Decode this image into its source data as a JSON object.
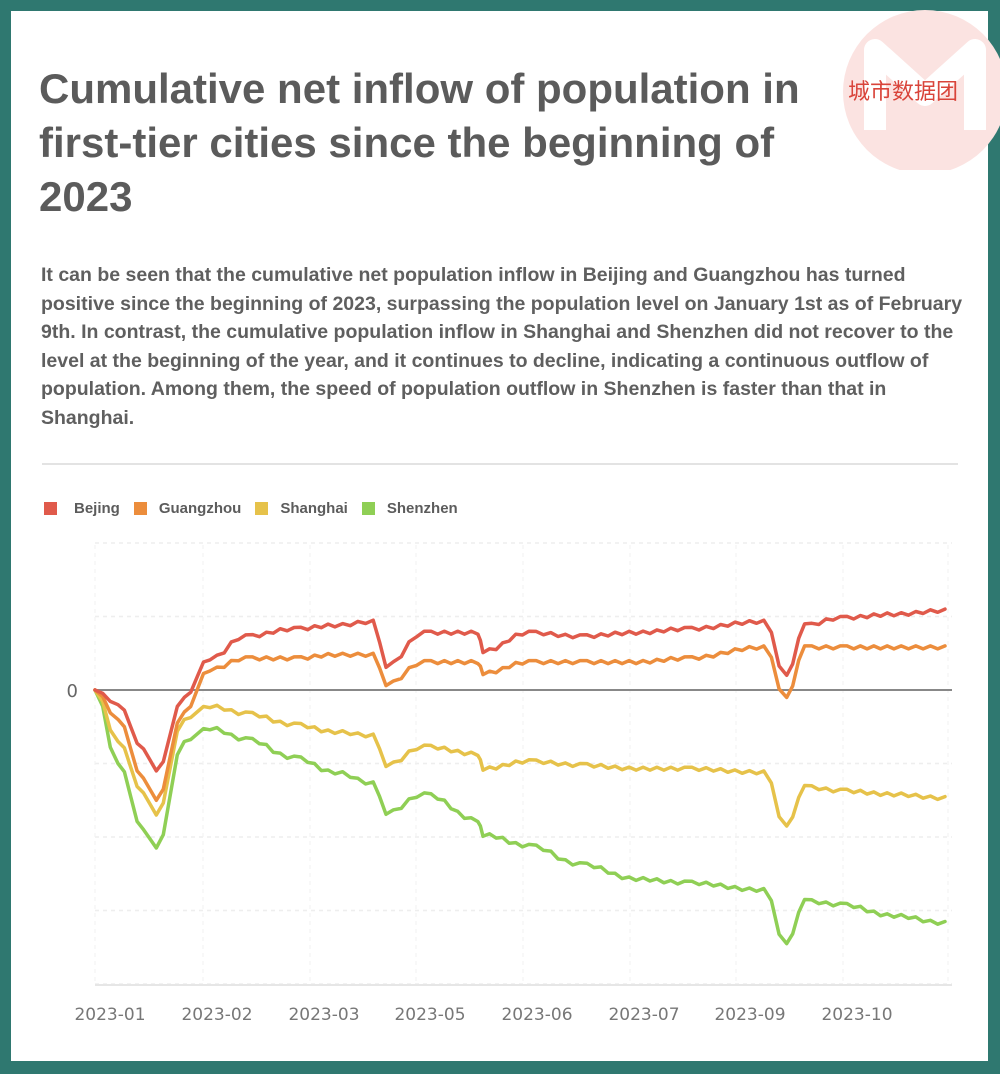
{
  "logo": {
    "text": "城市数据团"
  },
  "title": "Cumulative net inflow of population in first-tier cities since the beginning of 2023",
  "description": "It can be seen that the cumulative net population inflow in Beijing and Guangzhou has turned positive since the beginning of 2023, surpassing the population level on January 1st as of February 9th. In contrast, the cumulative population inflow in Shanghai and Shenzhen did not recover to the level at the beginning of the year, and it continues to decline, indicating a continuous outflow of population. Among them, the speed of population outflow in Shenzhen is faster than that in Shanghai.",
  "legend": [
    {
      "label": "Bejing",
      "color": "#e05a4b"
    },
    {
      "label": "Guangzhou",
      "color": "#ec8d3c"
    },
    {
      "label": "Shanghai",
      "color": "#e6c24a"
    },
    {
      "label": "Shenzhen",
      "color": "#8fcf55"
    }
  ],
  "chart_data": {
    "type": "line",
    "title": "Cumulative net inflow of population in first-tier cities since the beginning of 2023",
    "xlabel": "",
    "ylabel": "",
    "y_tick_labels": [
      "0"
    ],
    "x_tick_labels": [
      "2023-01",
      "2023-02",
      "2023-03",
      "2023-05",
      "2023-06",
      "2023-07",
      "2023-09",
      "2023-10"
    ],
    "grid": true,
    "legend_position": "top-left",
    "units_note": "Values in gridline units relative to 0 (no numeric scale shown besides 0)",
    "x": [
      "2023-01-01",
      "2023-01-10",
      "2023-01-20",
      "2023-01-25",
      "2023-02-05",
      "2023-02-15",
      "2023-03-01",
      "2023-03-20",
      "2023-04-05",
      "2023-04-20",
      "2023-04-25",
      "2023-05-10",
      "2023-05-31",
      "2023-06-02",
      "2023-06-20",
      "2023-07-10",
      "2023-08-01",
      "2023-08-20",
      "2023-09-20",
      "2023-09-29",
      "2023-10-06",
      "2023-10-20",
      "2023-11-10",
      "2023-11-30"
    ],
    "series": [
      {
        "name": "Bejing",
        "color": "#e05a4b",
        "values": [
          0,
          -0.2,
          -0.8,
          -1.1,
          -0.1,
          0.45,
          0.75,
          0.85,
          0.9,
          0.95,
          0.35,
          0.8,
          0.8,
          0.55,
          0.8,
          0.75,
          0.8,
          0.85,
          0.95,
          0.2,
          0.9,
          1.0,
          1.05,
          1.1
        ]
      },
      {
        "name": "Guangzhou",
        "color": "#ec8d3c",
        "values": [
          0,
          -0.4,
          -1.2,
          -1.5,
          -0.3,
          0.3,
          0.45,
          0.45,
          0.5,
          0.5,
          0.1,
          0.4,
          0.4,
          0.25,
          0.4,
          0.4,
          0.4,
          0.45,
          0.6,
          -0.1,
          0.6,
          0.6,
          0.6,
          0.6
        ]
      },
      {
        "name": "Shanghai",
        "color": "#e6c24a",
        "values": [
          0,
          -0.7,
          -1.4,
          -1.7,
          -0.4,
          -0.2,
          -0.3,
          -0.45,
          -0.55,
          -0.6,
          -1.0,
          -0.75,
          -0.85,
          -1.05,
          -0.95,
          -1.0,
          -1.05,
          -1.05,
          -1.1,
          -1.85,
          -1.3,
          -1.35,
          -1.4,
          -1.45
        ]
      },
      {
        "name": "Shenzhen",
        "color": "#8fcf55",
        "values": [
          0,
          -1.0,
          -1.9,
          -2.15,
          -0.7,
          -0.5,
          -0.65,
          -0.9,
          -1.1,
          -1.25,
          -1.65,
          -1.4,
          -1.75,
          -1.95,
          -2.1,
          -2.35,
          -2.55,
          -2.6,
          -2.7,
          -3.45,
          -2.85,
          -2.9,
          -3.05,
          -3.15
        ]
      }
    ]
  }
}
